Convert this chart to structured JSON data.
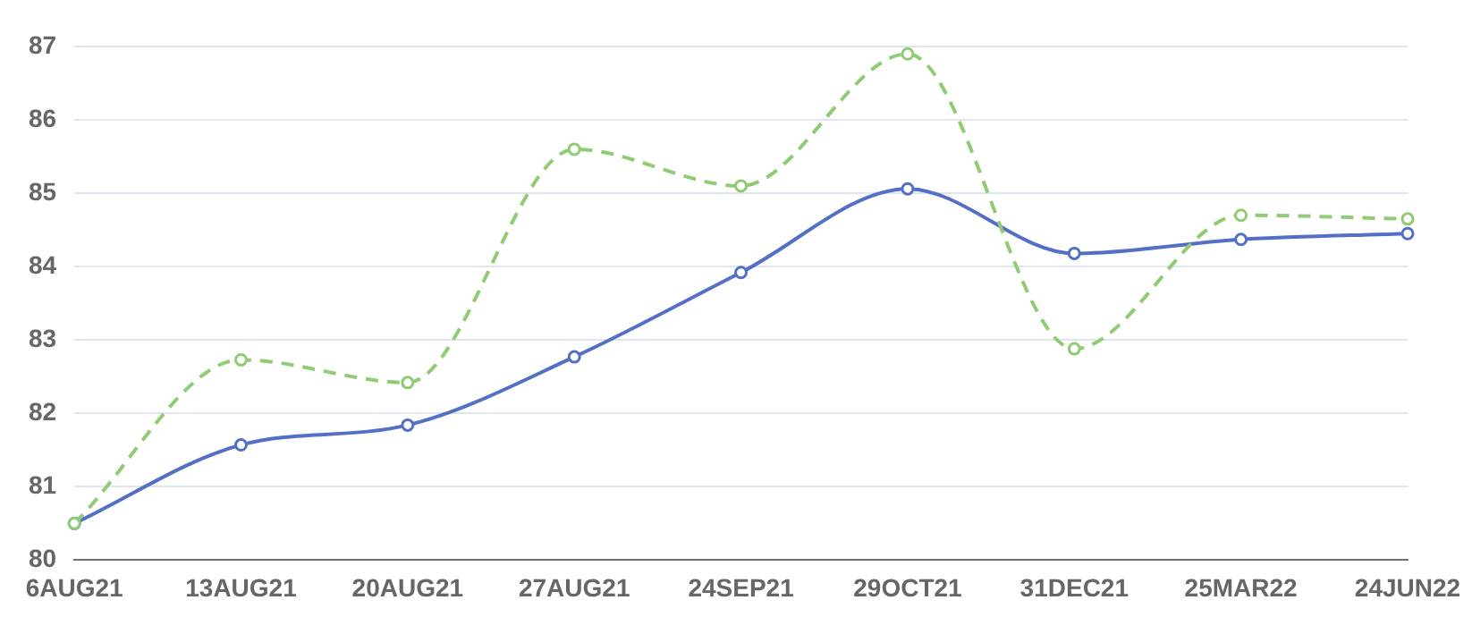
{
  "chart_data": {
    "type": "line",
    "categories": [
      "6AUG21",
      "13AUG21",
      "20AUG21",
      "27AUG21",
      "24SEP21",
      "29OCT21",
      "31DEC21",
      "25MAR22",
      "24JUN22"
    ],
    "series": [
      {
        "color": "#5470c6",
        "line_style": "solid",
        "values": [
          80.5,
          81.57,
          81.84,
          82.77,
          83.92,
          85.06,
          84.18,
          84.37,
          84.45
        ]
      },
      {
        "color": "#91cc75",
        "line_style": "dashed",
        "values": [
          80.5,
          82.73,
          82.42,
          85.6,
          85.1,
          86.9,
          82.88,
          84.7,
          84.65
        ]
      }
    ],
    "ylim": [
      80,
      87
    ],
    "yticks": [
      80,
      81,
      82,
      83,
      84,
      85,
      86,
      87
    ],
    "grid": "y",
    "legend": false,
    "marker": "circle"
  }
}
